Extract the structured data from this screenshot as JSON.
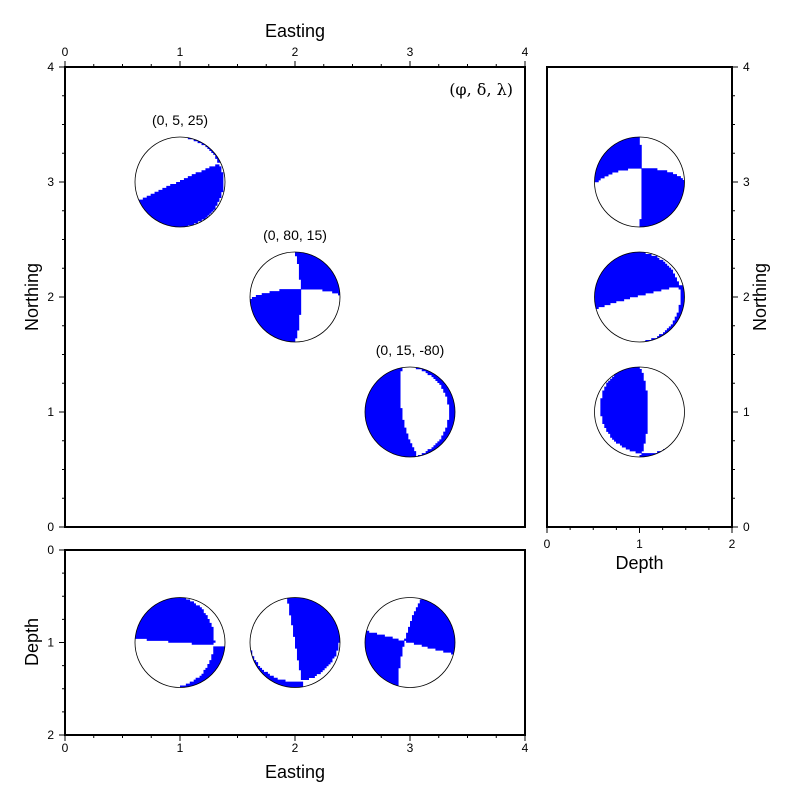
{
  "colors": {
    "compression": "#0000ff",
    "dilatation": "#ffffff",
    "outline": "#000000"
  },
  "legend": "(φ, δ, λ)",
  "panels": {
    "main": {
      "x_title": "Easting",
      "y_title": "Northing",
      "x_ticks": [
        "0",
        "1",
        "2",
        "3",
        "4"
      ],
      "y_ticks": [
        "0",
        "1",
        "2",
        "3",
        "4"
      ]
    },
    "side": {
      "x_title": "Depth",
      "y_title": "Northing",
      "x_ticks": [
        "0",
        "1",
        "2"
      ],
      "y_ticks": [
        "0",
        "1",
        "2",
        "3",
        "4"
      ]
    },
    "bottom": {
      "x_title": "Easting",
      "y_title": "Depth",
      "x_ticks": [
        "0",
        "1",
        "2",
        "3",
        "4"
      ],
      "y_ticks": [
        "0",
        "1",
        "2"
      ]
    }
  },
  "chart_data": {
    "type": "scatter",
    "x_range": [
      0,
      4
    ],
    "y_range": [
      0,
      4
    ],
    "depth_range": [
      0,
      2
    ],
    "events": [
      {
        "label": "(0, 5, 25)",
        "easting": 1,
        "northing": 3,
        "depth": 1,
        "strike": 0,
        "dip": 5,
        "rake": 25
      },
      {
        "label": "(0, 80, 15)",
        "easting": 2,
        "northing": 2,
        "depth": 1,
        "strike": 0,
        "dip": 80,
        "rake": 15
      },
      {
        "label": "(0, 15, -80)",
        "easting": 3,
        "northing": 1,
        "depth": 1,
        "strike": 0,
        "dip": 15,
        "rake": -80
      }
    ]
  }
}
